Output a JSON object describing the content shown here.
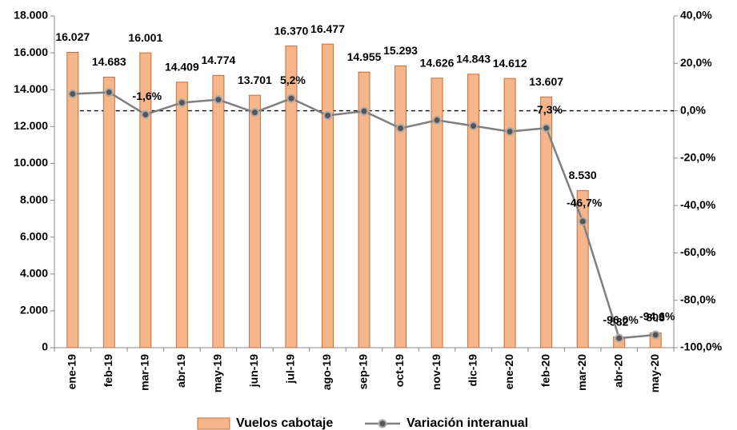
{
  "chart_data": {
    "type": "bar",
    "categories": [
      "ene-19",
      "feb-19",
      "mar-19",
      "abr-19",
      "may-19",
      "jun-19",
      "jul-19",
      "ago-19",
      "sep-19",
      "oct-19",
      "nov-19",
      "dic-19",
      "ene-20",
      "feb-20",
      "mar-20",
      "abr-20",
      "may-20"
    ],
    "series": [
      {
        "name": "Vuelos cabotaje",
        "type": "bar",
        "color": "#f7b68a",
        "values": [
          16027,
          14683,
          16001,
          14409,
          14774,
          13701,
          16370,
          16477,
          14955,
          15293,
          14626,
          14843,
          14612,
          13607,
          8530,
          582,
          803
        ],
        "value_labels": [
          "16.027",
          "14.683",
          "16.001",
          "14.409",
          "14.774",
          "13.701",
          "16.370",
          "16.477",
          "14.955",
          "15.293",
          "14.626",
          "14.843",
          "14.612",
          "13.607",
          "8.530",
          "582",
          "803"
        ]
      },
      {
        "name": "Variación interanual",
        "type": "line",
        "axis": "y2",
        "color": "#7f7f7f",
        "values": [
          7.1,
          7.8,
          -1.6,
          3.4,
          4.7,
          -0.7,
          5.2,
          -2.0,
          -0.2,
          -7.4,
          -4.0,
          -6.4,
          -8.8,
          -7.3,
          -46.7,
          -96.0,
          -94.6
        ],
        "value_labels": [
          null,
          null,
          "-1,6%",
          null,
          null,
          null,
          "5,2%",
          null,
          null,
          null,
          null,
          null,
          null,
          "-7,3%",
          "-46,7%",
          "-96,0%",
          "-94,6%"
        ]
      }
    ],
    "ylim": [
      0,
      18000
    ],
    "yticks": [
      0,
      {
        "value": 2000,
        "label": "2.000"
      },
      {
        "value": 4000,
        "label": "4.000"
      },
      {
        "value": 6000,
        "label": "6.000"
      },
      {
        "value": 8000,
        "label": "8.000"
      },
      {
        "value": 10000,
        "label": "10.000"
      },
      {
        "value": 12000,
        "label": "12.000"
      },
      {
        "value": 14000,
        "label": "14.000"
      },
      {
        "value": 16000,
        "label": "16.000"
      },
      {
        "value": 18000,
        "label": "18.000"
      }
    ],
    "y2lim": [
      -100,
      40
    ],
    "y2ticks": [
      {
        "value": -100,
        "label": "-100,0%"
      },
      {
        "value": -80,
        "label": "-80,0%"
      },
      {
        "value": -60,
        "label": "-60,0%"
      },
      {
        "value": -40,
        "label": "-40,0%"
      },
      {
        "value": -20,
        "label": "-20,0%"
      },
      {
        "value": 0,
        "label": "0,0%"
      },
      {
        "value": 20,
        "label": "20,0%"
      },
      {
        "value": 40,
        "label": "40,0%"
      }
    ],
    "y2_reference_line": 0,
    "grid": false,
    "legend": "bottom"
  }
}
